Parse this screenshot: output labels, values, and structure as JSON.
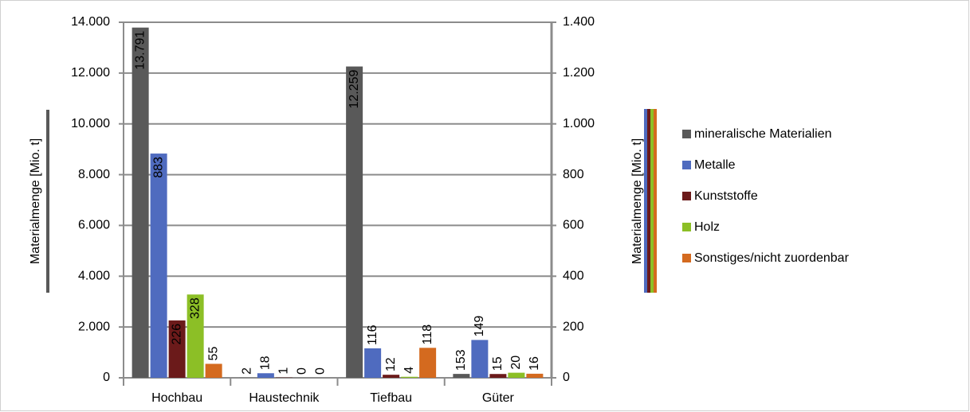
{
  "chart_data": {
    "type": "bar",
    "categories": [
      "Hochbau",
      "Haustechnik",
      "Tiefbau",
      "Güter"
    ],
    "ylabel": "Materialmenge [Mio. t]",
    "y2label": "Materialmenge [Mio. t]",
    "ylim": [
      0,
      14000
    ],
    "yticks": [
      0,
      {
        "value": 2000,
        "label": "2.000"
      },
      {
        "value": 4000,
        "label": "4.000"
      },
      {
        "value": 6000,
        "label": "6.000"
      },
      {
        "value": 8000,
        "label": "8.000"
      },
      {
        "value": 10000,
        "label": "10.000"
      },
      {
        "value": 12000,
        "label": "12.000"
      },
      {
        "value": 14000,
        "label": "14.000"
      }
    ],
    "y2lim": [
      0,
      1400
    ],
    "y2ticks": [
      0,
      200,
      400,
      600,
      800,
      {
        "value": 1000,
        "label": "1.000"
      },
      {
        "value": 1200,
        "label": "1.200"
      },
      {
        "value": 1400,
        "label": "1.400"
      }
    ],
    "grid": true,
    "legend": "right",
    "series": [
      {
        "name": "mineralische Materialien",
        "color": "#595959",
        "values": [
          13791,
          2,
          12259,
          153
        ],
        "value_labels": [
          "13.791",
          "2",
          "12.259",
          "153"
        ]
      },
      {
        "name": "Metalle",
        "color": "#4f6bbf",
        "axis": "y2",
        "values": [
          883,
          18,
          116,
          149
        ]
      },
      {
        "name": "Kunststoffe",
        "color": "#6b1a1a",
        "axis": "y2",
        "values": [
          226,
          1,
          12,
          15
        ]
      },
      {
        "name": "Holz",
        "color": "#8cbf26",
        "axis": "y2",
        "values": [
          328,
          0,
          4,
          20
        ]
      },
      {
        "name": "Sonstiges/nicht zuordenbar",
        "color": "#d46a1f",
        "axis": "y2",
        "values": [
          55,
          0,
          118,
          16
        ]
      }
    ]
  }
}
